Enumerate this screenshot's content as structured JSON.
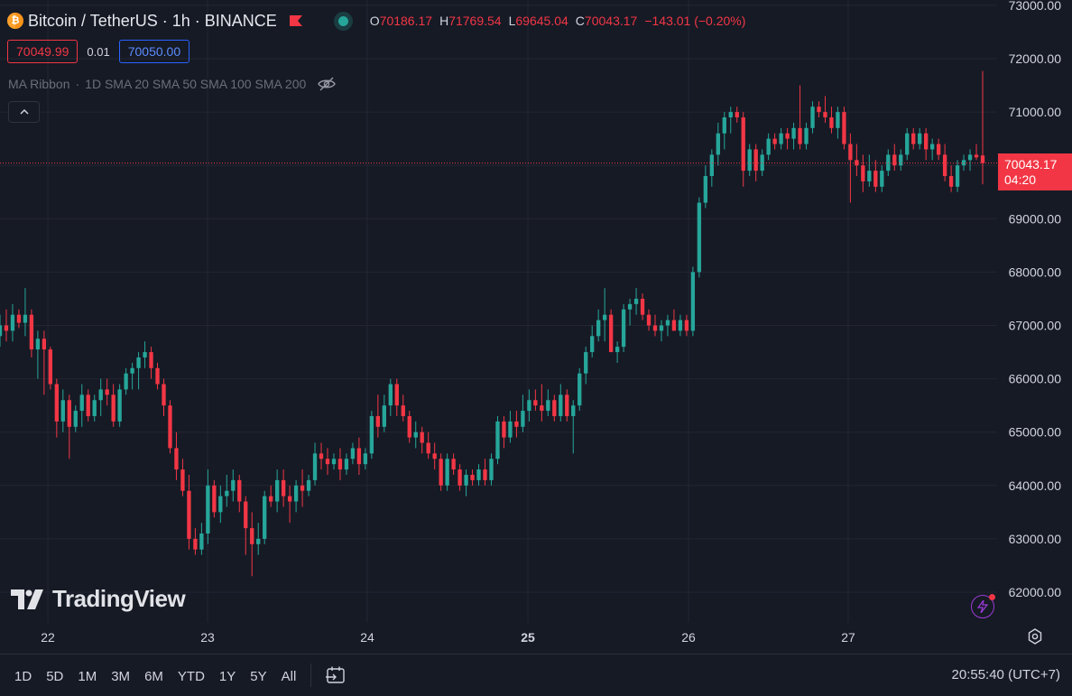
{
  "header": {
    "symbol_title": "Bitcoin / TetherUS · 1h · BINANCE",
    "symbol_icon": "bitcoin-icon",
    "ohlc": {
      "o_label": "O",
      "o_value": "70186.17",
      "h_label": "H",
      "h_value": "71769.54",
      "l_label": "L",
      "l_value": "69645.04",
      "c_label": "C",
      "c_value": "70043.17",
      "change": "−143.01 (−0.20%)"
    },
    "sell_price": "70049.99",
    "spread": "0.01",
    "buy_price": "70050.00",
    "indicator": {
      "name": "MA Ribbon",
      "params": "1D SMA 20 SMA 50 SMA 100 SMA 200"
    }
  },
  "last_price_label": {
    "price": "70043.17",
    "countdown": "04:20"
  },
  "logo_text": "TradingView",
  "bottom_bar": {
    "ranges": [
      "1D",
      "5D",
      "1M",
      "3M",
      "6M",
      "YTD",
      "1Y",
      "5Y",
      "All"
    ],
    "clock": "20:55:40 (UTC+7)"
  },
  "colors": {
    "background": "#161a25",
    "up": "#26a69a",
    "down": "#f23645",
    "grid": "#232632",
    "text": "#d1d4dc"
  },
  "chart_data": {
    "type": "candlestick",
    "interval": "1h",
    "y_ticks": [
      62000,
      63000,
      64000,
      65000,
      66000,
      67000,
      68000,
      69000,
      70000,
      71000,
      72000,
      73000
    ],
    "y_tick_labels": [
      "62000.00",
      "63000.00",
      "64000.00",
      "65000.00",
      "66000.00",
      "67000.00",
      "68000.00",
      "69000.00",
      "70000.00",
      "71000.00",
      "72000.00",
      "73000.00"
    ],
    "x_tick_labels": [
      "22",
      "23",
      "24",
      "25",
      "26",
      "27"
    ],
    "x_tick_bold": [
      "25"
    ],
    "ylim": [
      61500,
      73100
    ],
    "last_price": 70043.17,
    "candles": [
      [
        66800,
        67200,
        66600,
        67000
      ],
      [
        67000,
        67300,
        66700,
        66900
      ],
      [
        66900,
        67400,
        66700,
        67200
      ],
      [
        67200,
        67300,
        66950,
        67050
      ],
      [
        67050,
        67700,
        66800,
        67200
      ],
      [
        67200,
        67300,
        66400,
        66550
      ],
      [
        66550,
        66900,
        66000,
        66750
      ],
      [
        66750,
        66900,
        65700,
        66550
      ],
      [
        66550,
        66600,
        65800,
        65900
      ],
      [
        65900,
        66000,
        64900,
        65200
      ],
      [
        65200,
        65800,
        65000,
        65600
      ],
      [
        65600,
        65700,
        64500,
        65100
      ],
      [
        65100,
        65500,
        65000,
        65400
      ],
      [
        65400,
        65900,
        65100,
        65700
      ],
      [
        65700,
        65800,
        65200,
        65300
      ],
      [
        65300,
        65700,
        65200,
        65600
      ],
      [
        65600,
        66000,
        65300,
        65800
      ],
      [
        65800,
        66000,
        65500,
        65700
      ],
      [
        65700,
        65900,
        65100,
        65200
      ],
      [
        65200,
        65900,
        65100,
        65800
      ],
      [
        65800,
        66200,
        65700,
        66100
      ],
      [
        66100,
        66300,
        65800,
        66200
      ],
      [
        66200,
        66500,
        65800,
        66400
      ],
      [
        66400,
        66700,
        66200,
        66500
      ],
      [
        66500,
        66600,
        66000,
        66200
      ],
      [
        66200,
        66300,
        65800,
        65900
      ],
      [
        65900,
        66000,
        65300,
        65500
      ],
      [
        65500,
        65600,
        64600,
        64700
      ],
      [
        64700,
        65000,
        64100,
        64300
      ],
      [
        64300,
        64500,
        63800,
        63900
      ],
      [
        63900,
        64200,
        62800,
        63000
      ],
      [
        63000,
        63200,
        62700,
        62800
      ],
      [
        62800,
        63300,
        62700,
        63100
      ],
      [
        63100,
        64300,
        62900,
        64000
      ],
      [
        64000,
        64100,
        63400,
        63500
      ],
      [
        63500,
        64000,
        63300,
        63800
      ],
      [
        63800,
        64200,
        63600,
        63900
      ],
      [
        63900,
        64300,
        63700,
        64100
      ],
      [
        64100,
        64200,
        63500,
        63700
      ],
      [
        63700,
        63800,
        62700,
        63200
      ],
      [
        63200,
        63500,
        62300,
        62900
      ],
      [
        62900,
        63300,
        62700,
        63000
      ],
      [
        63000,
        63900,
        62900,
        63800
      ],
      [
        63800,
        64000,
        63600,
        63700
      ],
      [
        63700,
        64300,
        63500,
        64100
      ],
      [
        64100,
        64300,
        63600,
        63800
      ],
      [
        63800,
        64000,
        63300,
        63700
      ],
      [
        63700,
        64100,
        63500,
        64000
      ],
      [
        64000,
        64300,
        63600,
        63900
      ],
      [
        63900,
        64200,
        63800,
        64100
      ],
      [
        64100,
        64800,
        64000,
        64600
      ],
      [
        64600,
        64800,
        64300,
        64500
      ],
      [
        64500,
        64700,
        64200,
        64400
      ],
      [
        64400,
        64600,
        64300,
        64500
      ],
      [
        64500,
        64700,
        64100,
        64300
      ],
      [
        64300,
        64600,
        64200,
        64500
      ],
      [
        64500,
        64800,
        64400,
        64700
      ],
      [
        64700,
        64900,
        64200,
        64400
      ],
      [
        64400,
        64700,
        64300,
        64600
      ],
      [
        64600,
        65400,
        64500,
        65300
      ],
      [
        65300,
        65700,
        64900,
        65100
      ],
      [
        65100,
        65700,
        65000,
        65500
      ],
      [
        65500,
        66000,
        65300,
        65900
      ],
      [
        65900,
        66000,
        65300,
        65500
      ],
      [
        65500,
        65700,
        65200,
        65300
      ],
      [
        65300,
        65400,
        64800,
        64900
      ],
      [
        64900,
        65200,
        64700,
        65000
      ],
      [
        65000,
        65100,
        64600,
        64800
      ],
      [
        64800,
        65000,
        64500,
        64600
      ],
      [
        64600,
        64800,
        64300,
        64500
      ],
      [
        64500,
        64600,
        63900,
        64000
      ],
      [
        64000,
        64600,
        63900,
        64500
      ],
      [
        64500,
        64600,
        64200,
        64300
      ],
      [
        64300,
        64400,
        63900,
        64000
      ],
      [
        64000,
        64300,
        63800,
        64200
      ],
      [
        64200,
        64300,
        64000,
        64100
      ],
      [
        64100,
        64400,
        64000,
        64300
      ],
      [
        64300,
        64500,
        64000,
        64100
      ],
      [
        64100,
        64600,
        64000,
        64500
      ],
      [
        64500,
        65300,
        64400,
        65200
      ],
      [
        65200,
        65300,
        64700,
        64900
      ],
      [
        64900,
        65400,
        64800,
        65200
      ],
      [
        65200,
        65400,
        64900,
        65100
      ],
      [
        65100,
        65700,
        65000,
        65400
      ],
      [
        65400,
        65800,
        65200,
        65600
      ],
      [
        65600,
        65800,
        65400,
        65500
      ],
      [
        65500,
        65900,
        65200,
        65400
      ],
      [
        65400,
        65800,
        65300,
        65600
      ],
      [
        65600,
        65700,
        65200,
        65300
      ],
      [
        65300,
        65900,
        65200,
        65700
      ],
      [
        65700,
        65800,
        65200,
        65300
      ],
      [
        65300,
        65600,
        64600,
        65500
      ],
      [
        65500,
        66200,
        65400,
        66100
      ],
      [
        66100,
        66600,
        65900,
        66500
      ],
      [
        66500,
        67000,
        66400,
        66800
      ],
      [
        66800,
        67300,
        66700,
        67100
      ],
      [
        67100,
        67700,
        66700,
        67200
      ],
      [
        67200,
        67300,
        66500,
        66500
      ],
      [
        66500,
        66700,
        66300,
        66600
      ],
      [
        66600,
        67400,
        66500,
        67300
      ],
      [
        67300,
        67500,
        67000,
        67400
      ],
      [
        67400,
        67700,
        67200,
        67500
      ],
      [
        67500,
        67600,
        67100,
        67200
      ],
      [
        67200,
        67300,
        66900,
        67000
      ],
      [
        67000,
        67200,
        66800,
        66900
      ],
      [
        66900,
        67100,
        66700,
        67000
      ],
      [
        67000,
        67200,
        66800,
        67100
      ],
      [
        67100,
        67300,
        66900,
        66900
      ],
      [
        66900,
        67200,
        66800,
        67100
      ],
      [
        67100,
        67200,
        66800,
        66900
      ],
      [
        66900,
        68100,
        66800,
        68000
      ],
      [
        68000,
        69400,
        67900,
        69300
      ],
      [
        69300,
        70000,
        69200,
        69800
      ],
      [
        69800,
        70300,
        69600,
        70200
      ],
      [
        70200,
        70800,
        70000,
        70600
      ],
      [
        70600,
        71000,
        70300,
        70900
      ],
      [
        70900,
        71100,
        70600,
        71000
      ],
      [
        71000,
        71100,
        70800,
        70900
      ],
      [
        70900,
        71000,
        69600,
        69900
      ],
      [
        69900,
        70400,
        69800,
        70300
      ],
      [
        70300,
        70400,
        69700,
        69900
      ],
      [
        69900,
        70300,
        69800,
        70200
      ],
      [
        70200,
        70600,
        70100,
        70500
      ],
      [
        70500,
        70600,
        70300,
        70400
      ],
      [
        70400,
        70700,
        70300,
        70600
      ],
      [
        70600,
        70700,
        70300,
        70500
      ],
      [
        70500,
        70800,
        70300,
        70700
      ],
      [
        70700,
        71500,
        70300,
        70400
      ],
      [
        70400,
        70800,
        70300,
        70700
      ],
      [
        70700,
        71200,
        70600,
        71100
      ],
      [
        71100,
        71200,
        70900,
        71000
      ],
      [
        71000,
        71300,
        70800,
        70900
      ],
      [
        70900,
        71100,
        70600,
        70700
      ],
      [
        70700,
        71100,
        70500,
        71000
      ],
      [
        71000,
        71100,
        70300,
        70400
      ],
      [
        70400,
        70600,
        69300,
        70100
      ],
      [
        70100,
        70400,
        69800,
        70000
      ],
      [
        70000,
        70200,
        69500,
        69700
      ],
      [
        69700,
        70200,
        69600,
        69900
      ],
      [
        69900,
        70100,
        69500,
        69600
      ],
      [
        69600,
        70000,
        69500,
        69900
      ],
      [
        69900,
        70300,
        69800,
        70200
      ],
      [
        70200,
        70400,
        69900,
        70000
      ],
      [
        70000,
        70300,
        69900,
        70200
      ],
      [
        70200,
        70700,
        70100,
        70600
      ],
      [
        70600,
        70700,
        70300,
        70400
      ],
      [
        70400,
        70700,
        70300,
        70600
      ],
      [
        70600,
        70700,
        70100,
        70300
      ],
      [
        70300,
        70500,
        70100,
        70400
      ],
      [
        70400,
        70500,
        70100,
        70200
      ],
      [
        70200,
        70400,
        69700,
        69800
      ],
      [
        69800,
        70000,
        69500,
        69600
      ],
      [
        69600,
        70100,
        69500,
        70000
      ],
      [
        70000,
        70200,
        69900,
        70100
      ],
      [
        70100,
        70300,
        69900,
        70200
      ],
      [
        70200,
        70400,
        70100,
        70150
      ],
      [
        70186.17,
        71769.54,
        69645.04,
        70043.17
      ]
    ]
  }
}
